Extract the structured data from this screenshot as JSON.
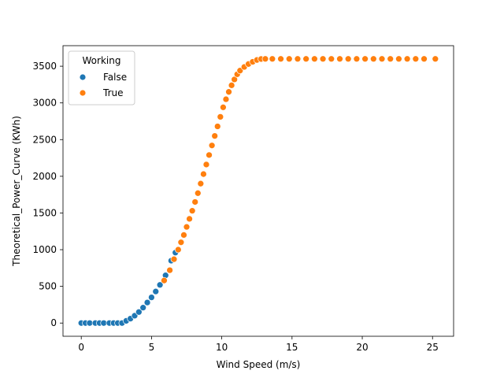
{
  "chart_data": {
    "type": "scatter",
    "title": "",
    "xlabel": "Wind Speed (m/s)",
    "ylabel": "Theoretical_Power_Curve (KWh)",
    "xlim": [
      -1.3,
      26.5
    ],
    "ylim": [
      -180,
      3780
    ],
    "xticks": [
      0,
      5,
      10,
      15,
      20,
      25
    ],
    "yticks": [
      0,
      500,
      1000,
      1500,
      2000,
      2500,
      3000,
      3500
    ],
    "grid": false,
    "legend": {
      "title": "Working",
      "placement": "top-left"
    },
    "series": [
      {
        "name": "False",
        "color": "#1f77b4",
        "points": [
          [
            0.0,
            0
          ],
          [
            0.3,
            0
          ],
          [
            0.6,
            0
          ],
          [
            1.0,
            0
          ],
          [
            1.3,
            0
          ],
          [
            1.6,
            0
          ],
          [
            2.0,
            0
          ],
          [
            2.3,
            0
          ],
          [
            2.6,
            0
          ],
          [
            2.9,
            0
          ],
          [
            3.2,
            30
          ],
          [
            3.5,
            60
          ],
          [
            3.8,
            100
          ],
          [
            4.1,
            150
          ],
          [
            4.4,
            210
          ],
          [
            4.7,
            280
          ],
          [
            5.0,
            350
          ],
          [
            5.3,
            430
          ],
          [
            5.6,
            520
          ],
          [
            6.0,
            650
          ],
          [
            6.4,
            850
          ],
          [
            6.7,
            960
          ]
        ]
      },
      {
        "name": "True",
        "color": "#ff7f0e",
        "points": [
          [
            5.9,
            580
          ],
          [
            6.3,
            720
          ],
          [
            6.6,
            870
          ],
          [
            6.9,
            1000
          ],
          [
            7.1,
            1100
          ],
          [
            7.3,
            1200
          ],
          [
            7.5,
            1310
          ],
          [
            7.7,
            1420
          ],
          [
            7.9,
            1530
          ],
          [
            8.1,
            1650
          ],
          [
            8.3,
            1770
          ],
          [
            8.5,
            1900
          ],
          [
            8.7,
            2030
          ],
          [
            8.9,
            2160
          ],
          [
            9.1,
            2290
          ],
          [
            9.3,
            2420
          ],
          [
            9.5,
            2550
          ],
          [
            9.7,
            2680
          ],
          [
            9.9,
            2810
          ],
          [
            10.1,
            2940
          ],
          [
            10.3,
            3050
          ],
          [
            10.5,
            3150
          ],
          [
            10.7,
            3240
          ],
          [
            10.9,
            3320
          ],
          [
            11.1,
            3390
          ],
          [
            11.3,
            3440
          ],
          [
            11.6,
            3490
          ],
          [
            11.9,
            3530
          ],
          [
            12.2,
            3560
          ],
          [
            12.5,
            3585
          ],
          [
            12.8,
            3598
          ],
          [
            13.1,
            3600
          ],
          [
            13.6,
            3600
          ],
          [
            14.2,
            3600
          ],
          [
            14.8,
            3600
          ],
          [
            15.4,
            3600
          ],
          [
            16.0,
            3600
          ],
          [
            16.6,
            3600
          ],
          [
            17.2,
            3600
          ],
          [
            17.8,
            3600
          ],
          [
            18.4,
            3600
          ],
          [
            19.0,
            3600
          ],
          [
            19.6,
            3600
          ],
          [
            20.2,
            3600
          ],
          [
            20.8,
            3600
          ],
          [
            21.4,
            3600
          ],
          [
            22.0,
            3600
          ],
          [
            22.6,
            3600
          ],
          [
            23.2,
            3600
          ],
          [
            23.8,
            3600
          ],
          [
            24.4,
            3600
          ],
          [
            25.2,
            3600
          ]
        ]
      }
    ]
  }
}
